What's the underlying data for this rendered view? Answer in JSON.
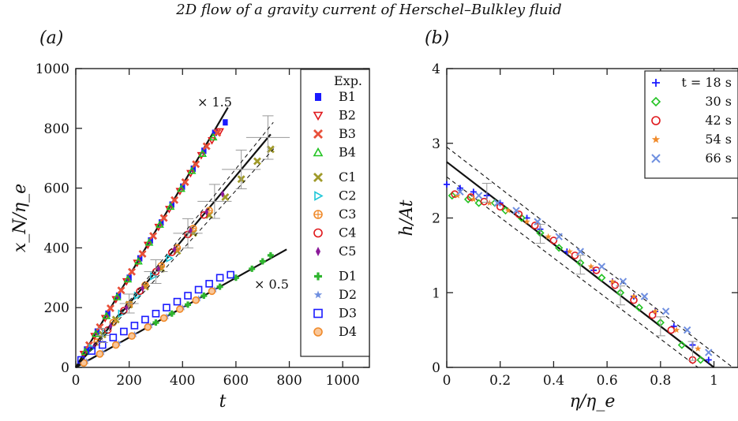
{
  "title": "2D flow of a gravity current of Herschel–Bulkley fluid",
  "chart_data": [
    {
      "panel_label": "(a)",
      "type": "scatter",
      "xlabel": "t",
      "ylabel": "x_N/η_e",
      "xlim": [
        0,
        1100
      ],
      "ylim": [
        0,
        1000
      ],
      "xticks": [
        "0",
        "200",
        "400",
        "600",
        "800",
        "1000"
      ],
      "yticks": [
        "0",
        "200",
        "400",
        "600",
        "800",
        "1000"
      ],
      "grid": false,
      "legend": {
        "title": "Exp.",
        "placement": "right"
      },
      "annotations": [
        "× 1.5",
        "× 0.5"
      ],
      "reference_lines": [
        {
          "label": "× 1.5",
          "x": [
            0,
            570
          ],
          "y": [
            0,
            870
          ]
        },
        {
          "label": "",
          "x": [
            0,
            730
          ],
          "y": [
            0,
            780
          ]
        },
        {
          "label": "× 0.5",
          "x": [
            0,
            790
          ],
          "y": [
            0,
            395
          ]
        }
      ],
      "series": [
        {
          "name": "B1",
          "marker": "square-filled",
          "color": "#1a1aff",
          "x": [
            40,
            80,
            120,
            160,
            200,
            240,
            280,
            320,
            360,
            400,
            440,
            480,
            520,
            560
          ],
          "y": [
            60,
            120,
            180,
            240,
            300,
            365,
            425,
            485,
            545,
            605,
            665,
            725,
            785,
            820
          ]
        },
        {
          "name": "B2",
          "marker": "triangle-down-open",
          "color": "#e0181c",
          "x": [
            30,
            70,
            110,
            150,
            190,
            230,
            270,
            310,
            350,
            390,
            430,
            470,
            510,
            540
          ],
          "y": [
            45,
            105,
            165,
            228,
            288,
            350,
            410,
            470,
            530,
            590,
            650,
            710,
            760,
            790
          ]
        },
        {
          "name": "B3",
          "marker": "x-thick",
          "color": "#e8503a",
          "x": [
            50,
            90,
            130,
            170,
            210,
            250,
            290,
            330,
            370,
            410,
            450,
            490,
            530
          ],
          "y": [
            75,
            135,
            198,
            258,
            320,
            380,
            440,
            500,
            560,
            620,
            680,
            740,
            785
          ]
        },
        {
          "name": "B4",
          "marker": "triangle-up-open",
          "color": "#22c322",
          "x": [
            35,
            75,
            115,
            155,
            195,
            235,
            275,
            315,
            355,
            395,
            435,
            475,
            515
          ],
          "y": [
            52,
            112,
            172,
            235,
            295,
            355,
            418,
            478,
            538,
            598,
            658,
            715,
            770
          ]
        },
        {
          "name": "C1",
          "marker": "x-thick",
          "color": "#a09a2a",
          "x": [
            100,
            150,
            200,
            260,
            320,
            380,
            440,
            500,
            560,
            620,
            680,
            730
          ],
          "y": [
            110,
            160,
            210,
            270,
            330,
            390,
            450,
            510,
            570,
            630,
            690,
            730
          ]
        },
        {
          "name": "C2",
          "marker": "triangle-right-open",
          "color": "#1fc7d8",
          "x": [
            60,
            110,
            170,
            230,
            290,
            350
          ],
          "y": [
            65,
            115,
            180,
            240,
            305,
            365
          ]
        },
        {
          "name": "C3",
          "marker": "circle-plus",
          "color": "#f08a2a",
          "x": [
            80,
            140,
            200,
            260,
            320,
            380,
            440,
            500
          ],
          "y": [
            85,
            150,
            210,
            275,
            340,
            400,
            465,
            525
          ]
        },
        {
          "name": "C4",
          "marker": "circle-open",
          "color": "#e0181c",
          "x": [
            120,
            180,
            240,
            300,
            360,
            420,
            480
          ],
          "y": [
            125,
            190,
            255,
            320,
            385,
            445,
            510
          ]
        },
        {
          "name": "C5",
          "marker": "diamond-filled",
          "color": "#8b1a9a",
          "x": [
            70,
            130,
            190,
            250,
            310,
            370,
            430,
            490,
            550
          ],
          "y": [
            72,
            138,
            200,
            265,
            330,
            395,
            458,
            520,
            580
          ]
        },
        {
          "name": "D1",
          "marker": "plus-thick",
          "color": "#2fb52f",
          "x": [
            300,
            360,
            420,
            480,
            540,
            600,
            660,
            700,
            730
          ],
          "y": [
            150,
            180,
            210,
            240,
            270,
            300,
            330,
            355,
            375
          ]
        },
        {
          "name": "D2",
          "marker": "star-filled",
          "color": "#6f8fe0",
          "x": [
            40,
            100,
            160,
            220,
            280,
            340,
            400,
            460,
            520
          ],
          "y": [
            20,
            50,
            80,
            110,
            140,
            170,
            200,
            230,
            260
          ]
        },
        {
          "name": "D3",
          "marker": "square-open",
          "color": "#1a1aff",
          "x": [
            20,
            60,
            100,
            140,
            180,
            220,
            260,
            300,
            340,
            380,
            420,
            460,
            500,
            540,
            580
          ],
          "y": [
            25,
            55,
            75,
            100,
            120,
            140,
            160,
            180,
            200,
            220,
            240,
            260,
            280,
            300,
            310
          ]
        },
        {
          "name": "D4",
          "marker": "circle-filled-light",
          "color": "#f08a2a",
          "x": [
            30,
            90,
            150,
            210,
            270,
            330,
            390,
            450,
            510
          ],
          "y": [
            15,
            45,
            75,
            105,
            135,
            165,
            195,
            225,
            255
          ]
        }
      ]
    },
    {
      "panel_label": "(b)",
      "type": "scatter",
      "xlabel": "η/η_e",
      "ylabel": "h/At",
      "xlim": [
        0,
        1.09
      ],
      "ylim": [
        0,
        4
      ],
      "xticks": [
        "0",
        "0.2",
        "0.4",
        "0.6",
        "0.8",
        "1"
      ],
      "yticks": [
        "0",
        "1",
        "2",
        "3",
        "4"
      ],
      "grid": false,
      "legend": {
        "placement": "top-right"
      },
      "reference_lines": [
        {
          "label": "",
          "style": "solid",
          "x": [
            0,
            1.0
          ],
          "y": [
            2.75,
            0
          ]
        },
        {
          "label": "",
          "style": "dashed",
          "x": [
            0,
            1.07
          ],
          "y": [
            2.95,
            0
          ]
        },
        {
          "label": "",
          "style": "dashed",
          "x": [
            0,
            0.94
          ],
          "y": [
            2.55,
            0
          ]
        }
      ],
      "series": [
        {
          "name": "t = 18 s",
          "marker": "plus",
          "color": "#1a1aff",
          "x": [
            0.0,
            0.05,
            0.1,
            0.15,
            0.2,
            0.3,
            0.35,
            0.45,
            0.55,
            0.62,
            0.7,
            0.78,
            0.85,
            0.92,
            0.98
          ],
          "y": [
            2.45,
            2.4,
            2.35,
            2.3,
            2.2,
            2.0,
            1.85,
            1.55,
            1.3,
            1.15,
            0.95,
            0.75,
            0.55,
            0.3,
            0.1
          ]
        },
        {
          "name": "30 s",
          "marker": "diamond-open",
          "color": "#22c322",
          "x": [
            0.02,
            0.08,
            0.12,
            0.18,
            0.22,
            0.28,
            0.35,
            0.42,
            0.5,
            0.58,
            0.65,
            0.72,
            0.8,
            0.88,
            0.95
          ],
          "y": [
            2.3,
            2.25,
            2.2,
            2.2,
            2.1,
            2.0,
            1.8,
            1.6,
            1.4,
            1.2,
            1.0,
            0.8,
            0.6,
            0.3,
            0.1
          ]
        },
        {
          "name": "42 s",
          "marker": "circle-open",
          "color": "#e0181c",
          "x": [
            0.03,
            0.09,
            0.14,
            0.2,
            0.27,
            0.33,
            0.4,
            0.48,
            0.56,
            0.63,
            0.7,
            0.77,
            0.84,
            0.92
          ],
          "y": [
            2.32,
            2.28,
            2.22,
            2.15,
            2.05,
            1.9,
            1.7,
            1.5,
            1.3,
            1.1,
            0.9,
            0.7,
            0.5,
            0.1
          ]
        },
        {
          "name": "54 s",
          "marker": "star-filled",
          "color": "#f08a2a",
          "x": [
            0.04,
            0.1,
            0.16,
            0.23,
            0.3,
            0.38,
            0.46,
            0.54,
            0.62,
            0.7,
            0.78,
            0.86,
            0.94
          ],
          "y": [
            2.3,
            2.25,
            2.2,
            2.1,
            1.95,
            1.75,
            1.55,
            1.35,
            1.15,
            0.95,
            0.75,
            0.5,
            0.25
          ]
        },
        {
          "name": "66 s",
          "marker": "x",
          "color": "#6f8fe0",
          "x": [
            0.05,
            0.12,
            0.19,
            0.26,
            0.34,
            0.42,
            0.5,
            0.58,
            0.66,
            0.74,
            0.82,
            0.9,
            0.98
          ],
          "y": [
            2.35,
            2.3,
            2.2,
            2.1,
            1.95,
            1.75,
            1.55,
            1.35,
            1.15,
            0.95,
            0.75,
            0.5,
            0.2
          ]
        }
      ]
    }
  ]
}
